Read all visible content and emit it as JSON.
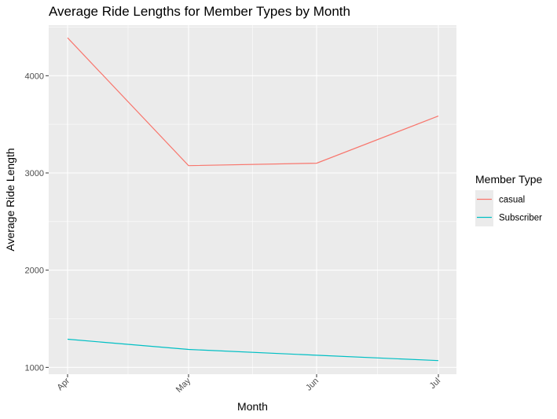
{
  "chart_data": {
    "type": "line",
    "title": "Average Ride Lengths for Member Types by Month",
    "xlabel": "Month",
    "ylabel": "Average Ride Length",
    "categories": [
      "Apr",
      "May",
      "Jun",
      "Jul"
    ],
    "ylim": [
      930,
      4520
    ],
    "yticks": [
      1000,
      2000,
      3000,
      4000
    ],
    "ytick_labels": [
      "1000",
      "2000",
      "3000",
      "4000"
    ],
    "grid": true,
    "legend": {
      "title": "Member Type",
      "placement": "right"
    },
    "series": [
      {
        "name": "casual",
        "color": "#f8766d",
        "values": [
          4390,
          3075,
          3100,
          3585
        ]
      },
      {
        "name": "Subscriber",
        "color": "#00bfc4",
        "values": [
          1290,
          1185,
          1125,
          1070
        ]
      }
    ]
  }
}
